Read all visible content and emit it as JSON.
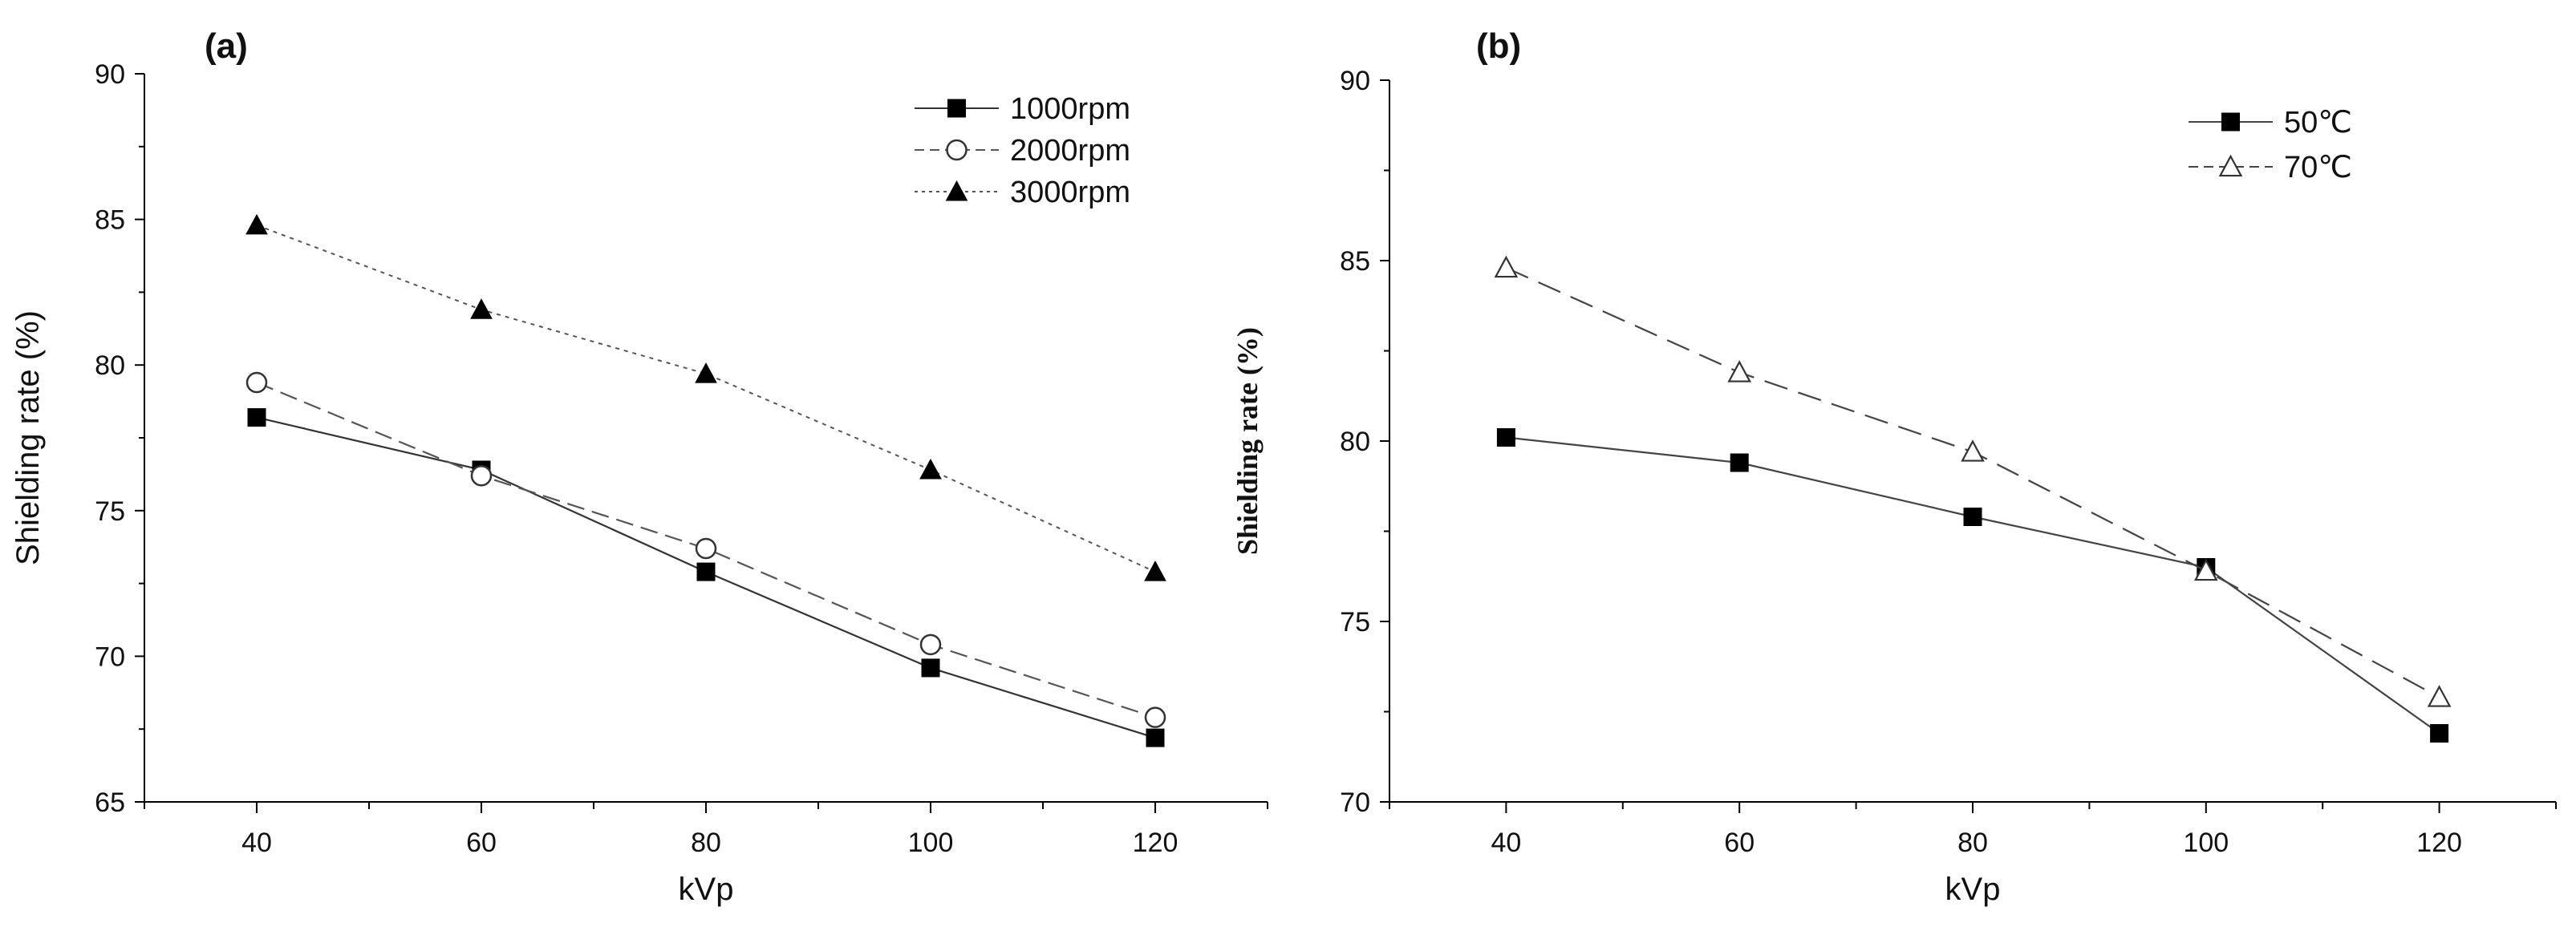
{
  "chart_data": [
    {
      "panel": "(a)",
      "type": "line",
      "title": "",
      "xlabel": "kVp",
      "ylabel": "Shielding rate (%)",
      "x": [
        40,
        60,
        80,
        100,
        120
      ],
      "xlim": [
        30,
        130
      ],
      "ylim": [
        65,
        90
      ],
      "xticks": [
        40,
        60,
        80,
        100,
        120
      ],
      "xtick_labels": [
        "40",
        "60",
        "80",
        "100",
        "120"
      ],
      "yticks": [
        65,
        70,
        75,
        80,
        85,
        90
      ],
      "ytick_labels": [
        "65",
        "70",
        "75",
        "80",
        "85",
        "90"
      ],
      "grid": false,
      "legend_position": "top-right",
      "series": [
        {
          "name": "1000rpm",
          "values": [
            78.2,
            76.4,
            72.9,
            69.6,
            67.2
          ],
          "marker": "square-filled",
          "line": "solid",
          "color": "#333333"
        },
        {
          "name": "2000rpm",
          "values": [
            79.4,
            76.2,
            73.7,
            70.4,
            67.9
          ],
          "marker": "circle-open",
          "line": "dashed",
          "color": "#555555"
        },
        {
          "name": "3000rpm",
          "values": [
            84.8,
            81.9,
            79.7,
            76.4,
            72.9
          ],
          "marker": "triangle-filled",
          "line": "dotted",
          "color": "#555555"
        }
      ]
    },
    {
      "panel": "(b)",
      "type": "line",
      "title": "",
      "xlabel": "kVp",
      "ylabel": "Shielding rate (%)",
      "x": [
        40,
        60,
        80,
        100,
        120
      ],
      "xlim": [
        30,
        130
      ],
      "ylim": [
        70,
        90
      ],
      "xticks": [
        40,
        60,
        80,
        100,
        120
      ],
      "xtick_labels": [
        "40",
        "60",
        "80",
        "100",
        "120"
      ],
      "yticks": [
        70,
        75,
        80,
        85,
        90
      ],
      "ytick_labels": [
        "70",
        "75",
        "80",
        "85",
        "90"
      ],
      "grid": false,
      "legend_position": "top-right",
      "series": [
        {
          "name": "50℃",
          "values": [
            80.1,
            79.4,
            77.9,
            76.5,
            71.9
          ],
          "marker": "square-filled",
          "line": "solid",
          "color": "#444444"
        },
        {
          "name": "70℃",
          "values": [
            84.8,
            81.9,
            79.7,
            76.4,
            72.9
          ],
          "marker": "triangle-open",
          "line": "dashed",
          "color": "#444444"
        }
      ]
    }
  ]
}
